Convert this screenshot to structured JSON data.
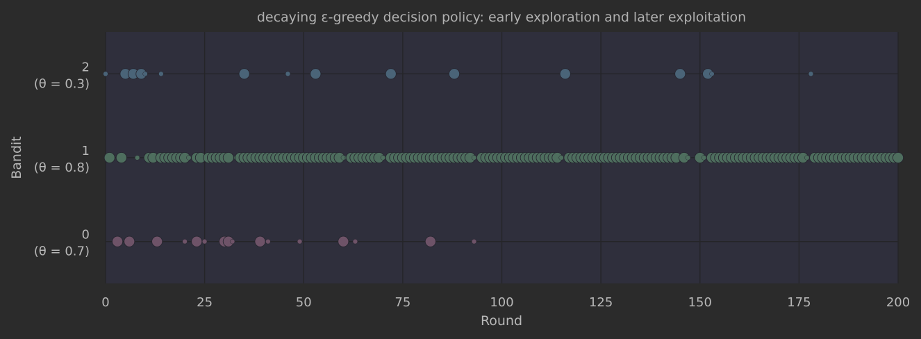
{
  "chart_data": {
    "type": "scatter",
    "title": "decaying ε-greedy decision policy: early exploration and later exploitation",
    "xlabel": "Round",
    "ylabel": "Bandit",
    "xlim": [
      0,
      200
    ],
    "ylim": [
      -0.5,
      2.5
    ],
    "xticks": [
      0,
      25,
      50,
      75,
      100,
      125,
      150,
      175,
      200
    ],
    "grid": true,
    "marker_size_meaning": "1 = reward received (large marker), 0 = no reward (small marker)",
    "bandits": [
      {
        "id": 0,
        "tick_label": "0",
        "theta_label": "(θ = 0.7)",
        "color": "#6e5368",
        "points": [
          [
            3,
            1
          ],
          [
            6,
            1
          ],
          [
            13,
            1
          ],
          [
            20,
            0
          ],
          [
            23,
            1
          ],
          [
            25,
            0
          ],
          [
            30,
            1
          ],
          [
            31,
            1
          ],
          [
            32,
            0
          ],
          [
            39,
            1
          ],
          [
            41,
            0
          ],
          [
            49,
            0
          ],
          [
            60,
            1
          ],
          [
            63,
            0
          ],
          [
            82,
            1
          ],
          [
            93,
            0
          ]
        ]
      },
      {
        "id": 1,
        "tick_label": "1",
        "theta_label": "(θ = 0.8)",
        "color": "#4e6e5e",
        "points": [
          [
            1,
            1
          ],
          [
            4,
            1
          ],
          [
            8,
            0
          ],
          [
            11,
            1
          ],
          [
            12,
            1
          ],
          [
            14,
            1
          ],
          [
            15,
            1
          ],
          [
            16,
            1
          ],
          [
            17,
            1
          ],
          [
            18,
            1
          ],
          [
            19,
            1
          ],
          [
            20,
            1
          ],
          [
            21,
            0
          ],
          [
            23,
            1
          ],
          [
            24,
            1
          ],
          [
            26,
            1
          ],
          [
            27,
            1
          ],
          [
            28,
            1
          ],
          [
            29,
            1
          ],
          [
            30,
            1
          ],
          [
            31,
            1
          ],
          [
            33,
            0
          ],
          [
            34,
            1
          ],
          [
            35,
            1
          ],
          [
            36,
            1
          ],
          [
            37,
            1
          ],
          [
            38,
            1
          ],
          [
            39,
            1
          ],
          [
            40,
            1
          ],
          [
            41,
            1
          ],
          [
            42,
            1
          ],
          [
            43,
            1
          ],
          [
            44,
            1
          ],
          [
            45,
            1
          ],
          [
            46,
            1
          ],
          [
            47,
            1
          ],
          [
            48,
            1
          ],
          [
            49,
            1
          ],
          [
            50,
            1
          ],
          [
            51,
            1
          ],
          [
            52,
            1
          ],
          [
            53,
            1
          ],
          [
            54,
            1
          ],
          [
            55,
            1
          ],
          [
            56,
            1
          ],
          [
            57,
            1
          ],
          [
            58,
            1
          ],
          [
            59,
            1
          ],
          [
            60,
            0
          ],
          [
            61,
            0
          ],
          [
            62,
            1
          ],
          [
            63,
            1
          ],
          [
            64,
            1
          ],
          [
            65,
            1
          ],
          [
            66,
            1
          ],
          [
            67,
            1
          ],
          [
            68,
            1
          ],
          [
            69,
            1
          ],
          [
            70,
            0
          ],
          [
            72,
            1
          ],
          [
            73,
            1
          ],
          [
            74,
            1
          ],
          [
            75,
            1
          ],
          [
            76,
            1
          ],
          [
            77,
            1
          ],
          [
            78,
            1
          ],
          [
            79,
            1
          ],
          [
            80,
            1
          ],
          [
            81,
            1
          ],
          [
            82,
            1
          ],
          [
            83,
            1
          ],
          [
            84,
            1
          ],
          [
            85,
            1
          ],
          [
            86,
            1
          ],
          [
            87,
            1
          ],
          [
            88,
            1
          ],
          [
            89,
            1
          ],
          [
            90,
            1
          ],
          [
            91,
            1
          ],
          [
            92,
            1
          ],
          [
            93,
            0
          ],
          [
            95,
            1
          ],
          [
            96,
            1
          ],
          [
            97,
            1
          ],
          [
            98,
            1
          ],
          [
            99,
            1
          ],
          [
            100,
            1
          ],
          [
            101,
            1
          ],
          [
            102,
            1
          ],
          [
            103,
            1
          ],
          [
            104,
            1
          ],
          [
            105,
            1
          ],
          [
            106,
            1
          ],
          [
            107,
            1
          ],
          [
            108,
            1
          ],
          [
            109,
            1
          ],
          [
            110,
            1
          ],
          [
            111,
            1
          ],
          [
            112,
            1
          ],
          [
            113,
            1
          ],
          [
            114,
            1
          ],
          [
            115,
            0
          ],
          [
            117,
            1
          ],
          [
            118,
            1
          ],
          [
            119,
            1
          ],
          [
            120,
            1
          ],
          [
            121,
            1
          ],
          [
            122,
            1
          ],
          [
            123,
            1
          ],
          [
            124,
            1
          ],
          [
            125,
            1
          ],
          [
            126,
            1
          ],
          [
            127,
            1
          ],
          [
            128,
            1
          ],
          [
            129,
            1
          ],
          [
            130,
            1
          ],
          [
            131,
            1
          ],
          [
            132,
            1
          ],
          [
            133,
            1
          ],
          [
            134,
            1
          ],
          [
            135,
            1
          ],
          [
            136,
            1
          ],
          [
            137,
            1
          ],
          [
            138,
            1
          ],
          [
            139,
            1
          ],
          [
            140,
            1
          ],
          [
            141,
            1
          ],
          [
            142,
            1
          ],
          [
            143,
            1
          ],
          [
            144,
            1
          ],
          [
            146,
            1
          ],
          [
            147,
            0
          ],
          [
            150,
            1
          ],
          [
            151,
            0
          ],
          [
            153,
            1
          ],
          [
            154,
            1
          ],
          [
            155,
            1
          ],
          [
            156,
            1
          ],
          [
            157,
            1
          ],
          [
            158,
            1
          ],
          [
            159,
            1
          ],
          [
            160,
            1
          ],
          [
            161,
            1
          ],
          [
            162,
            1
          ],
          [
            163,
            1
          ],
          [
            164,
            1
          ],
          [
            165,
            1
          ],
          [
            166,
            1
          ],
          [
            167,
            1
          ],
          [
            168,
            1
          ],
          [
            169,
            1
          ],
          [
            170,
            1
          ],
          [
            171,
            1
          ],
          [
            172,
            1
          ],
          [
            173,
            1
          ],
          [
            174,
            1
          ],
          [
            175,
            1
          ],
          [
            176,
            1
          ],
          [
            177,
            0
          ],
          [
            179,
            1
          ],
          [
            180,
            1
          ],
          [
            181,
            1
          ],
          [
            182,
            1
          ],
          [
            183,
            1
          ],
          [
            184,
            1
          ],
          [
            185,
            1
          ],
          [
            186,
            1
          ],
          [
            187,
            1
          ],
          [
            188,
            1
          ],
          [
            189,
            1
          ],
          [
            190,
            1
          ],
          [
            191,
            1
          ],
          [
            192,
            1
          ],
          [
            193,
            1
          ],
          [
            194,
            1
          ],
          [
            195,
            1
          ],
          [
            196,
            1
          ],
          [
            197,
            1
          ],
          [
            198,
            1
          ],
          [
            199,
            1
          ],
          [
            200,
            1
          ]
        ]
      },
      {
        "id": 2,
        "tick_label": "2",
        "theta_label": "(θ = 0.3)",
        "color": "#4a6478",
        "points": [
          [
            0,
            0
          ],
          [
            5,
            1
          ],
          [
            7,
            1
          ],
          [
            9,
            1
          ],
          [
            10,
            0
          ],
          [
            14,
            0
          ],
          [
            35,
            1
          ],
          [
            46,
            0
          ],
          [
            53,
            1
          ],
          [
            72,
            1
          ],
          [
            88,
            1
          ],
          [
            116,
            1
          ],
          [
            145,
            1
          ],
          [
            152,
            1
          ],
          [
            153,
            0
          ],
          [
            178,
            0
          ]
        ]
      }
    ]
  }
}
